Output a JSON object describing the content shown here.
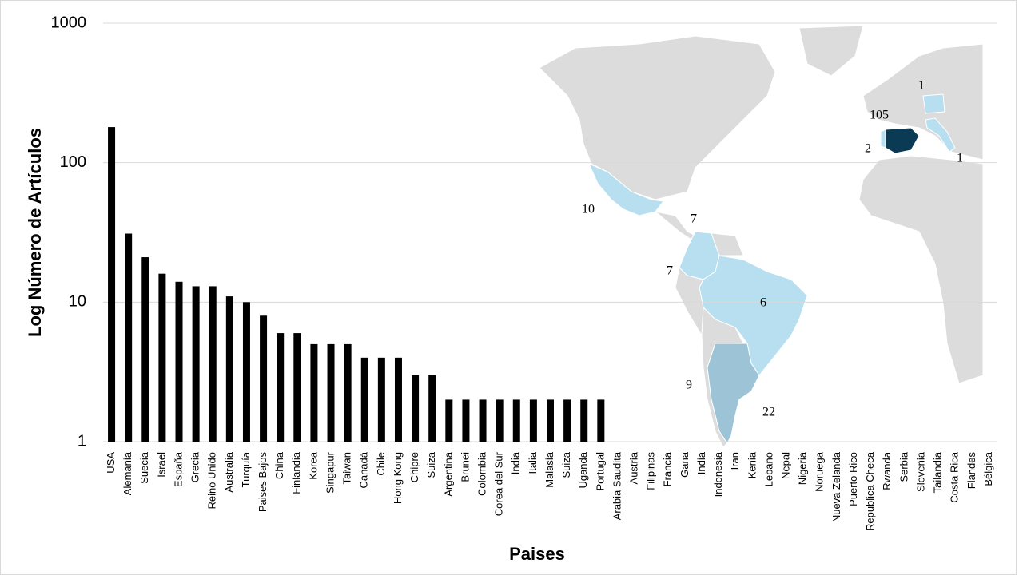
{
  "chart_data": {
    "type": "bar",
    "y_label": "Log Número de Artículos",
    "x_label": "Paises",
    "categories": [
      "USA",
      "Alemania",
      "Suecia",
      "Israel",
      "España",
      "Grecia",
      "Reino Unido",
      "Australia",
      "Turquía",
      "Paises Bajos",
      "China",
      "Finlandia",
      "Korea",
      "Singapur",
      "Taiwan",
      "Canadá",
      "Chile",
      "Hong Kong",
      "Chipre",
      "Suiza",
      "Argentina",
      "Brunei",
      "Colombia",
      "Corea del Sur",
      "India",
      "Italia",
      "Malasia",
      "Suiza",
      "Uganda",
      "Portugal",
      "Arabia Saudita",
      "Austria",
      "Filipinas",
      "Francia",
      "Gana",
      "India",
      "Indonesia",
      "Iran",
      "Kenia",
      "Lebano",
      "Nepal",
      "Nigeria",
      "Noruega",
      "Nueva Zelanda",
      "Puerto Rico",
      "Republica Checa",
      "Rwanda",
      "Serbia",
      "Slovenia",
      "Tailandia",
      "Costa Rica",
      "Flandes",
      "Bélgica"
    ],
    "values": [
      180,
      31,
      21,
      16,
      14,
      13,
      13,
      11,
      10,
      8,
      6,
      6,
      5,
      5,
      5,
      4,
      4,
      4,
      3,
      3,
      2,
      2,
      2,
      2,
      2,
      2,
      2,
      2,
      2,
      2,
      1,
      1,
      1,
      1,
      1,
      1,
      1,
      1,
      1,
      1,
      1,
      1,
      1,
      1,
      1,
      1,
      1,
      1,
      1,
      1,
      1,
      1,
      1
    ],
    "color": "#000000",
    "log_scale": true,
    "ylim": [
      1,
      1000
    ],
    "yticks": [
      1,
      10,
      100,
      1000
    ],
    "grid": true,
    "map_annotations": [
      "1",
      "105",
      "2",
      "1",
      "10",
      "7",
      "7",
      "6",
      "9",
      "22"
    ]
  }
}
